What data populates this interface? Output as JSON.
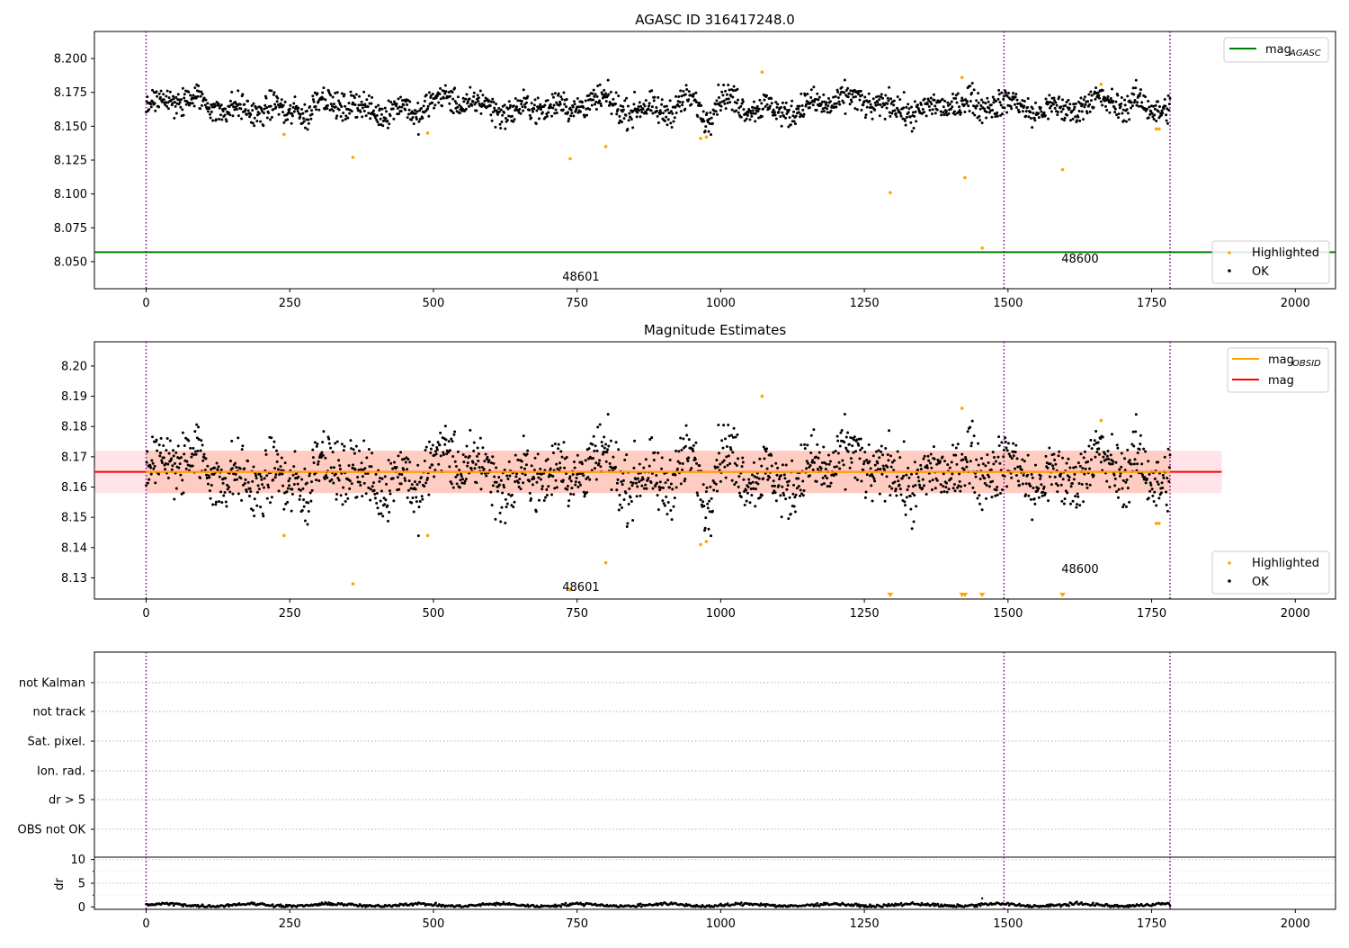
{
  "figure": {
    "title_top": "AGASC ID 316417248.0",
    "title_middle": "Magnitude Estimates"
  },
  "colors": {
    "ok_points": "#000000",
    "highlighted_points": "#ffa500",
    "mag_agasc_line": "#008000",
    "mag_obsid_line": "#ffa500",
    "mag_line": "#ff0000",
    "obs_boundary": "#800080",
    "band_fill": "#ffa07a"
  },
  "obs_boundaries": [
    0,
    1493,
    1782
  ],
  "obsid_labels": [
    {
      "text": "48601",
      "x": 740
    },
    {
      "text": "48600",
      "x": 1640
    }
  ],
  "chart_data": [
    {
      "type": "scatter",
      "title": "AGASC ID 316417248.0",
      "xlim": [
        -90,
        2070
      ],
      "ylim": [
        8.03,
        8.22
      ],
      "xticks": [
        "0",
        "250",
        "500",
        "750",
        "1000",
        "1250",
        "1500",
        "1750",
        "2000"
      ],
      "yticks": [
        "8.050",
        "8.075",
        "8.100",
        "8.125",
        "8.150",
        "8.175",
        "8.200"
      ],
      "legend_upper": [
        {
          "label": "mag",
          "subscript": "AGASC"
        }
      ],
      "legend_lower": [
        "Highlighted",
        "OK"
      ],
      "mag_agasc": 8.057,
      "ok_series": {
        "name": "OK",
        "x_range": [
          0,
          1782
        ],
        "y_center": 8.165,
        "y_spread": 0.013
      },
      "highlighted": [
        {
          "x": 240,
          "y": 8.144
        },
        {
          "x": 360,
          "y": 8.127
        },
        {
          "x": 490,
          "y": 8.145
        },
        {
          "x": 738,
          "y": 8.126
        },
        {
          "x": 800,
          "y": 8.135
        },
        {
          "x": 965,
          "y": 8.141
        },
        {
          "x": 975,
          "y": 8.142
        },
        {
          "x": 1072,
          "y": 8.19
        },
        {
          "x": 1295,
          "y": 8.101
        },
        {
          "x": 1420,
          "y": 8.186
        },
        {
          "x": 1425,
          "y": 8.112
        },
        {
          "x": 1455,
          "y": 8.06
        },
        {
          "x": 1595,
          "y": 8.118
        },
        {
          "x": 1662,
          "y": 8.181
        },
        {
          "x": 1758,
          "y": 8.148
        },
        {
          "x": 1763,
          "y": 8.148
        }
      ]
    },
    {
      "type": "scatter",
      "title": "Magnitude Estimates",
      "xlim": [
        -90,
        2070
      ],
      "ylim": [
        8.123,
        8.208
      ],
      "xticks": [
        "0",
        "250",
        "500",
        "750",
        "1000",
        "1250",
        "1500",
        "1750",
        "2000"
      ],
      "yticks": [
        "8.13",
        "8.14",
        "8.15",
        "8.16",
        "8.17",
        "8.18",
        "8.19",
        "8.20"
      ],
      "legend_upper": [
        {
          "label": "mag",
          "subscript": "OBSID"
        },
        {
          "label": "mag",
          "subscript": ""
        }
      ],
      "legend_lower": [
        "Highlighted",
        "OK"
      ],
      "mag": 8.165,
      "mag_band": [
        8.158,
        8.172
      ],
      "mag_band_xlim": [
        -90,
        1872
      ],
      "highlighted": [
        {
          "x": 240,
          "y": 8.144
        },
        {
          "x": 360,
          "y": 8.128
        },
        {
          "x": 490,
          "y": 8.144
        },
        {
          "x": 738,
          "y": 8.126
        },
        {
          "x": 800,
          "y": 8.135
        },
        {
          "x": 965,
          "y": 8.141
        },
        {
          "x": 975,
          "y": 8.142
        },
        {
          "x": 1072,
          "y": 8.19
        },
        {
          "x": 1420,
          "y": 8.186
        },
        {
          "x": 1662,
          "y": 8.182
        },
        {
          "x": 1758,
          "y": 8.148
        },
        {
          "x": 1763,
          "y": 8.148
        }
      ],
      "off_scale_markers": [
        1295,
        1420,
        1425,
        1455,
        1595
      ]
    },
    {
      "type": "scatter",
      "xlim": [
        -90,
        2070
      ],
      "flag_rows": [
        "not Kalman",
        "not track",
        "Sat. pixel.",
        "Ion. rad.",
        "dr > 5",
        "OBS not OK"
      ],
      "xticks": [
        "0",
        "250",
        "500",
        "750",
        "1000",
        "1250",
        "1500",
        "1750",
        "2000"
      ],
      "ylabel": "dr",
      "dr_yticks": [
        "0",
        "5",
        "10"
      ],
      "dr_ylim": [
        -0.5,
        10.5
      ],
      "dr_series": {
        "x_range": [
          0,
          1782
        ],
        "y_center": 0.4,
        "outlier": {
          "x": 1455,
          "y": 1.8
        }
      }
    }
  ]
}
